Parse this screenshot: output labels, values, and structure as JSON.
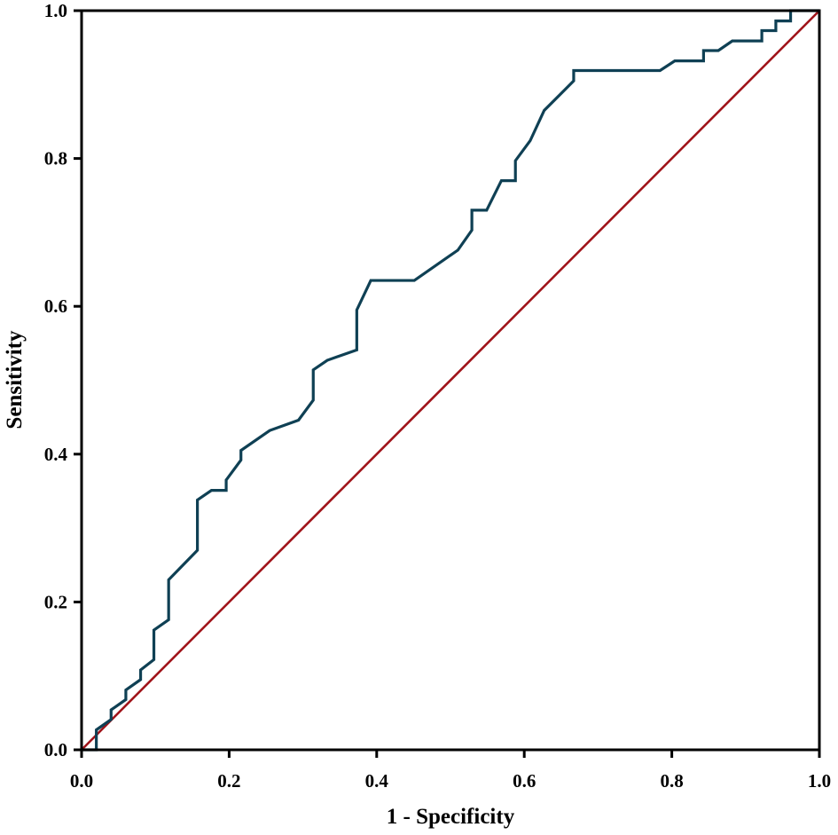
{
  "chart_data": {
    "type": "line",
    "title": "",
    "xlabel": "1 - Specificity",
    "ylabel": "Sensitivity",
    "xlim": [
      0,
      1
    ],
    "ylim": [
      0,
      1
    ],
    "x_ticks": [
      "0.0",
      "0.2",
      "0.4",
      "0.6",
      "0.8",
      "1.0"
    ],
    "y_ticks": [
      "0.0",
      "0.2",
      "0.4",
      "0.6",
      "0.8",
      "1.0"
    ],
    "grid": false,
    "series": [
      {
        "color": "#0f4054",
        "x": [
          0.0,
          0.02,
          0.02,
          0.04,
          0.04,
          0.06,
          0.06,
          0.08,
          0.08,
          0.098,
          0.098,
          0.118,
          0.118,
          0.157,
          0.157,
          0.176,
          0.196,
          0.196,
          0.216,
          0.216,
          0.255,
          0.294,
          0.314,
          0.314,
          0.333,
          0.373,
          0.373,
          0.392,
          0.451,
          0.51,
          0.529,
          0.529,
          0.549,
          0.569,
          0.588,
          0.588,
          0.608,
          0.627,
          0.667,
          0.667,
          0.784,
          0.804,
          0.843,
          0.843,
          0.863,
          0.882,
          0.922,
          0.922,
          0.941,
          0.941,
          0.961,
          0.961,
          1.0
        ],
        "y": [
          0.0,
          0.0,
          0.027,
          0.041,
          0.054,
          0.068,
          0.081,
          0.095,
          0.108,
          0.122,
          0.162,
          0.176,
          0.23,
          0.27,
          0.338,
          0.351,
          0.351,
          0.365,
          0.392,
          0.405,
          0.432,
          0.446,
          0.473,
          0.514,
          0.527,
          0.541,
          0.595,
          0.635,
          0.635,
          0.676,
          0.703,
          0.73,
          0.73,
          0.77,
          0.77,
          0.797,
          0.824,
          0.865,
          0.905,
          0.919,
          0.919,
          0.932,
          0.932,
          0.946,
          0.946,
          0.959,
          0.959,
          0.973,
          0.973,
          0.986,
          0.986,
          1.0,
          1.0
        ]
      },
      {
        "color": "#a0141a",
        "x": [
          0,
          1
        ],
        "y": [
          0,
          1
        ]
      }
    ]
  }
}
